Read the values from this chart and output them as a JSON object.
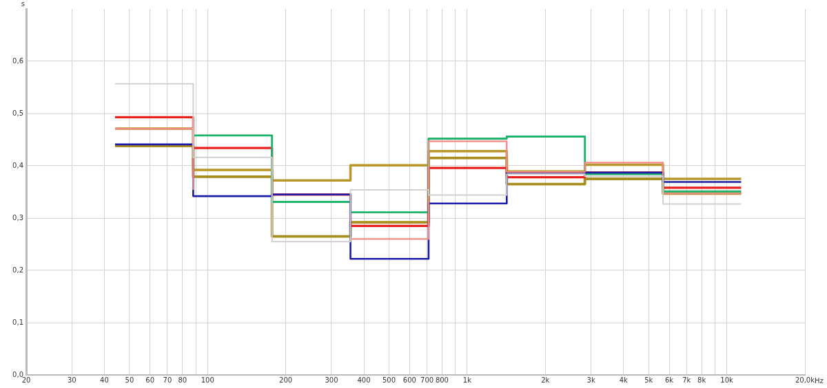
{
  "chart_data": {
    "type": "step",
    "xlabel": "Hz",
    "ylabel": "s",
    "log": "x",
    "grid": true,
    "legend": false,
    "marker": "none",
    "x": [
      44,
      88,
      177,
      355,
      710,
      1420,
      2840,
      5680,
      11360
    ],
    "xlim": [
      20,
      20000
    ],
    "xticks": [
      {
        "value": 20,
        "label": "20"
      },
      {
        "value": 30,
        "label": "30"
      },
      {
        "value": 40,
        "label": "40"
      },
      {
        "value": 50,
        "label": "50"
      },
      {
        "value": 60,
        "label": "60"
      },
      {
        "value": 70,
        "label": "70"
      },
      {
        "value": 80,
        "label": "80"
      },
      {
        "value": 90,
        "label": null
      },
      {
        "value": 100,
        "label": "100"
      },
      {
        "value": 200,
        "label": "200"
      },
      {
        "value": 300,
        "label": "300"
      },
      {
        "value": 400,
        "label": "400"
      },
      {
        "value": 500,
        "label": "500"
      },
      {
        "value": 600,
        "label": "600"
      },
      {
        "value": 700,
        "label": "700"
      },
      {
        "value": 800,
        "label": "800"
      },
      {
        "value": 900,
        "label": null
      },
      {
        "value": 1000,
        "label": "1k"
      },
      {
        "value": 2000,
        "label": "2k"
      },
      {
        "value": 3000,
        "label": "3k"
      },
      {
        "value": 4000,
        "label": "4k"
      },
      {
        "value": 5000,
        "label": "5k"
      },
      {
        "value": 6000,
        "label": "6k"
      },
      {
        "value": 7000,
        "label": "7k"
      },
      {
        "value": 8000,
        "label": "8k"
      },
      {
        "value": 9000,
        "label": null
      },
      {
        "value": 10000,
        "label": "10k"
      },
      {
        "value": 20000,
        "label": "20,0k"
      }
    ],
    "ylim": [
      0,
      0.7
    ],
    "yticks": [
      {
        "value": 0,
        "label": "0,0"
      },
      {
        "value": 0.1,
        "label": "0,1"
      },
      {
        "value": 0.2,
        "label": "0,2"
      },
      {
        "value": 0.3,
        "label": "0,3"
      },
      {
        "value": 0.4,
        "label": "0,4"
      },
      {
        "value": 0.5,
        "label": "0,5"
      },
      {
        "value": 0.6,
        "label": "0,6"
      }
    ],
    "series": [
      {
        "color": "#d0d0d0",
        "values": [
          0.557,
          0.416,
          0.255,
          0.354,
          0.344,
          0.384,
          0.38,
          0.327,
          0.327
        ]
      },
      {
        "color": "#f08a84",
        "values": [
          0.471,
          0.354,
          null,
          0.26,
          0.447,
          0.388,
          0.406,
          0.347,
          0.347
        ]
      },
      {
        "color": "#1a1aa8",
        "values": [
          0.441,
          0.342,
          0.345,
          0.222,
          0.328,
          0.387,
          0.387,
          0.369,
          0.369
        ]
      },
      {
        "color": "#1fb36b",
        "values": [
          null,
          0.458,
          0.331,
          0.311,
          0.452,
          0.456,
          0.384,
          0.351,
          0.351
        ]
      },
      {
        "color": "#e8201c",
        "values": [
          0.493,
          0.434,
          0.345,
          0.285,
          0.396,
          0.378,
          0.387,
          0.358,
          0.358
        ]
      },
      {
        "color": "#b8962a",
        "values": [
          0.471,
          0.392,
          0.372,
          0.401,
          0.428,
          0.389,
          0.402,
          0.375,
          0.375
        ]
      },
      {
        "color": "#a88e1e",
        "values": [
          0.438,
          0.379,
          0.265,
          0.292,
          0.415,
          0.365,
          0.375,
          0.347,
          0.347
        ]
      }
    ]
  }
}
